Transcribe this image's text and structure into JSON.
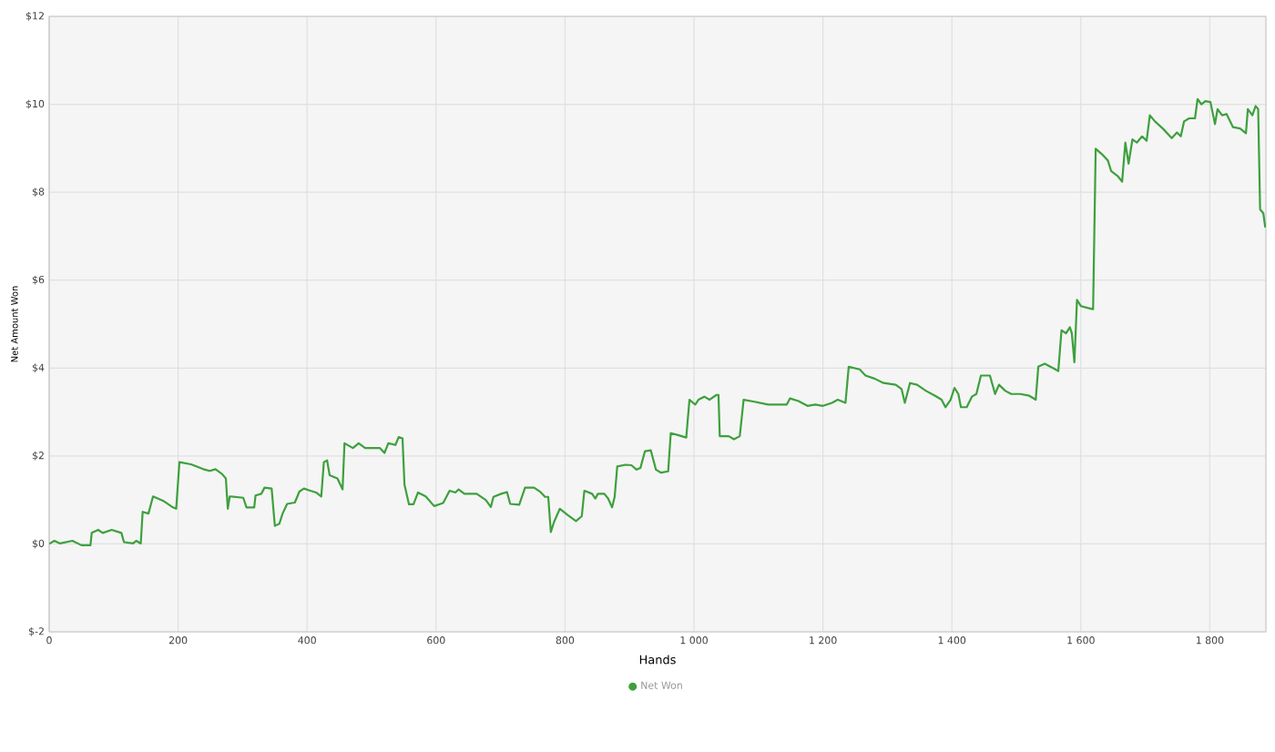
{
  "chart_data": {
    "type": "line",
    "xlabel": "Hands",
    "ylabel": "Net Amount Won",
    "xlim": [
      0,
      1887
    ],
    "ylim": [
      -2,
      12
    ],
    "xticks": [
      0,
      200,
      400,
      600,
      800,
      {
        "value": 1000,
        "label": "1 000"
      },
      {
        "value": 1200,
        "label": "1 200"
      },
      {
        "value": 1400,
        "label": "1 400"
      },
      {
        "value": 1600,
        "label": "1 600"
      },
      {
        "value": 1800,
        "label": "1 800"
      }
    ],
    "yticks": [
      {
        "value": -2,
        "label": "$-2"
      },
      {
        "value": 0,
        "label": "$0"
      },
      {
        "value": 2,
        "label": "$2"
      },
      {
        "value": 4,
        "label": "$4"
      },
      {
        "value": 6,
        "label": "$6"
      },
      {
        "value": 8,
        "label": "$8"
      },
      {
        "value": 10,
        "label": "$10"
      },
      {
        "value": 12,
        "label": "$12"
      }
    ],
    "grid": true,
    "legend": "bottom",
    "x": [
      0,
      8,
      17,
      36,
      50,
      64,
      66,
      76,
      83,
      97,
      112,
      116,
      130,
      135,
      142,
      145,
      154,
      161,
      178,
      192,
      197,
      202,
      220,
      239,
      249,
      258,
      268,
      274,
      277,
      280,
      301,
      306,
      318,
      320,
      329,
      334,
      345,
      350,
      357,
      362,
      369,
      381,
      388,
      395,
      405,
      414,
      422,
      426,
      431,
      435,
      447,
      455,
      458,
      471,
      480,
      490,
      513,
      520,
      526,
      537,
      542,
      548,
      551,
      558,
      565,
      572,
      584,
      597,
      611,
      621,
      630,
      635,
      644,
      663,
      677,
      685,
      689,
      701,
      710,
      715,
      729,
      738,
      752,
      762,
      769,
      774,
      778,
      783,
      792,
      804,
      817,
      826,
      830,
      842,
      847,
      851,
      861,
      867,
      873,
      877,
      881,
      894,
      903,
      911,
      917,
      924,
      933,
      941,
      949,
      960,
      964,
      974,
      988,
      993,
      1002,
      1007,
      1016,
      1024,
      1035,
      1038,
      1040,
      1054,
      1062,
      1071,
      1077,
      1092,
      1115,
      1144,
      1149,
      1162,
      1176,
      1188,
      1200,
      1214,
      1223,
      1235,
      1240,
      1257,
      1266,
      1280,
      1294,
      1313,
      1322,
      1327,
      1335,
      1346,
      1360,
      1374,
      1384,
      1390,
      1398,
      1404,
      1410,
      1414,
      1423,
      1431,
      1438,
      1445,
      1459,
      1467,
      1473,
      1483,
      1492,
      1506,
      1520,
      1530,
      1534,
      1544,
      1558,
      1565,
      1570,
      1577,
      1583,
      1586,
      1590,
      1594,
      1600,
      1610,
      1619,
      1623,
      1633,
      1642,
      1647,
      1657,
      1664,
      1669,
      1674,
      1680,
      1687,
      1695,
      1702,
      1707,
      1715,
      1727,
      1741,
      1749,
      1755,
      1760,
      1768,
      1777,
      1781,
      1787,
      1793,
      1801,
      1808,
      1812,
      1819,
      1826,
      1836,
      1847,
      1856,
      1859,
      1866,
      1871,
      1875,
      1878,
      1883,
      1886
    ],
    "series": [
      {
        "name": "Net Won",
        "color": "#3da03d",
        "values": [
          0.0,
          0.07,
          0.01,
          0.07,
          -0.03,
          -0.03,
          0.25,
          0.32,
          0.25,
          0.32,
          0.25,
          0.04,
          0.01,
          0.07,
          0.01,
          0.73,
          0.69,
          1.08,
          0.97,
          0.83,
          0.8,
          1.86,
          1.81,
          1.7,
          1.66,
          1.7,
          1.59,
          1.49,
          0.8,
          1.08,
          1.05,
          0.83,
          0.83,
          1.1,
          1.14,
          1.28,
          1.26,
          0.41,
          0.46,
          0.69,
          0.91,
          0.94,
          1.19,
          1.26,
          1.21,
          1.17,
          1.08,
          1.86,
          1.9,
          1.56,
          1.49,
          1.24,
          2.29,
          2.18,
          2.29,
          2.18,
          2.18,
          2.07,
          2.29,
          2.25,
          2.43,
          2.4,
          1.35,
          0.9,
          0.9,
          1.17,
          1.08,
          0.86,
          0.93,
          1.21,
          1.17,
          1.24,
          1.14,
          1.14,
          1.0,
          0.84,
          1.07,
          1.14,
          1.18,
          0.91,
          0.89,
          1.28,
          1.28,
          1.18,
          1.07,
          1.07,
          0.27,
          0.5,
          0.8,
          0.66,
          0.52,
          0.63,
          1.21,
          1.14,
          1.03,
          1.14,
          1.14,
          1.03,
          0.83,
          1.07,
          1.76,
          1.8,
          1.79,
          1.69,
          1.73,
          2.11,
          2.13,
          1.69,
          1.62,
          1.65,
          2.52,
          2.48,
          2.42,
          3.28,
          3.17,
          3.28,
          3.35,
          3.28,
          3.39,
          3.39,
          2.45,
          2.45,
          2.38,
          2.45,
          3.28,
          3.24,
          3.17,
          3.17,
          3.31,
          3.25,
          3.14,
          3.17,
          3.14,
          3.21,
          3.28,
          3.21,
          4.03,
          3.97,
          3.83,
          3.76,
          3.66,
          3.62,
          3.52,
          3.21,
          3.66,
          3.62,
          3.48,
          3.37,
          3.28,
          3.11,
          3.28,
          3.55,
          3.41,
          3.11,
          3.11,
          3.35,
          3.41,
          3.83,
          3.83,
          3.41,
          3.62,
          3.48,
          3.41,
          3.41,
          3.37,
          3.28,
          4.03,
          4.1,
          3.99,
          3.93,
          4.86,
          4.79,
          4.93,
          4.79,
          4.13,
          5.55,
          5.41,
          5.37,
          5.34,
          8.99,
          8.86,
          8.72,
          8.48,
          8.37,
          8.24,
          9.13,
          8.65,
          9.2,
          9.13,
          9.27,
          9.17,
          9.75,
          9.61,
          9.45,
          9.23,
          9.36,
          9.27,
          9.61,
          9.68,
          9.68,
          10.12,
          10.0,
          10.07,
          10.05,
          9.55,
          9.89,
          9.75,
          9.78,
          9.48,
          9.45,
          9.34,
          9.89,
          9.75,
          9.96,
          9.89,
          7.61,
          7.52,
          7.2
        ]
      }
    ]
  }
}
